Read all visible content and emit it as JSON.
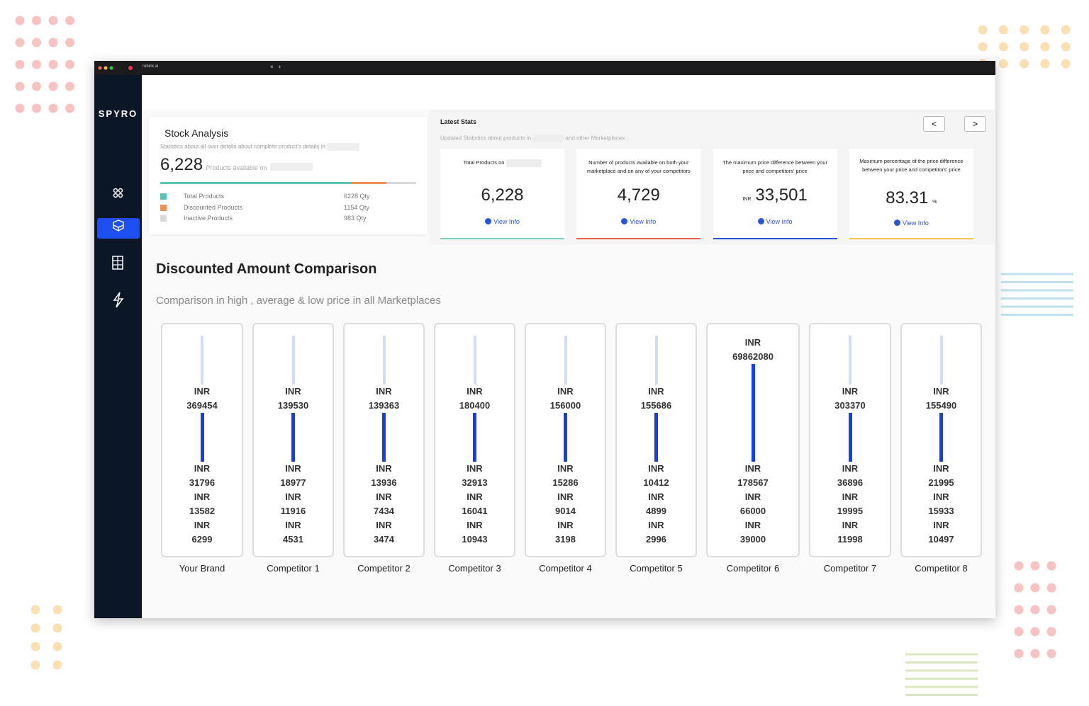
{
  "browser": {
    "tab_title": "rubick.ai"
  },
  "sidebar": {
    "brand": "SPYRO"
  },
  "stock": {
    "title": "Stock Analysis",
    "subtitle": "Statistics about all over details about complete product's details in",
    "total": "6,228",
    "total_caption": "Products available on",
    "items": [
      {
        "label": "Total Products",
        "value": 6228,
        "unit": "Qty",
        "color": "#5cc6b4"
      },
      {
        "label": "Discounted Products",
        "value": 1154,
        "unit": "Qty",
        "color": "#ef8f5a"
      },
      {
        "label": "Inactive Products",
        "value": 983,
        "unit": "Qty",
        "color": "#d9d9d9"
      }
    ]
  },
  "latest": {
    "title": "Latest Stats",
    "subtitle_prefix": "Updated Statistics about products in",
    "subtitle_suffix": "and other Marketplaces",
    "link": "View Info",
    "cards": [
      {
        "label": "Total Products on",
        "value": "6,228",
        "color": "#7dd3c0"
      },
      {
        "label": "Number of products available on both your marketplace and on any of your competitors",
        "value": "4,729",
        "color": "#e8614f"
      },
      {
        "label": "The maximum price difference between your price and competitors' price",
        "prefix": "INR",
        "value": "33,501",
        "color": "#2855d6"
      },
      {
        "label": "Maximum percentage of the price difference between your price and competitors' price",
        "value": "83.31",
        "suffix": "%",
        "color": "#f2c94c"
      }
    ]
  },
  "comparison": {
    "title": "Discounted Amount Comparison",
    "subtitle": "Comparison in high , average & low price in all Marketplaces",
    "currency": "INR",
    "columns": [
      {
        "name": "Your Brand",
        "prices": [
          369454,
          31796,
          13582,
          6299
        ]
      },
      {
        "name": "Competitor 1",
        "prices": [
          139530,
          18977,
          11916,
          4531
        ]
      },
      {
        "name": "Competitor 2",
        "prices": [
          139363,
          13936,
          7434,
          3474
        ]
      },
      {
        "name": "Competitor 3",
        "prices": [
          180400,
          32913,
          16041,
          10943
        ]
      },
      {
        "name": "Competitor 4",
        "prices": [
          156000,
          15286,
          9014,
          3198
        ]
      },
      {
        "name": "Competitor 5",
        "prices": [
          155686,
          10412,
          4899,
          2996
        ]
      },
      {
        "name": "Competitor 6",
        "prices": [
          69862080,
          178567,
          66000,
          39000
        ]
      },
      {
        "name": "Competitor 7",
        "prices": [
          303370,
          36896,
          19995,
          11998
        ]
      },
      {
        "name": "Competitor 8",
        "prices": [
          155490,
          21995,
          15933,
          10497
        ]
      }
    ]
  }
}
